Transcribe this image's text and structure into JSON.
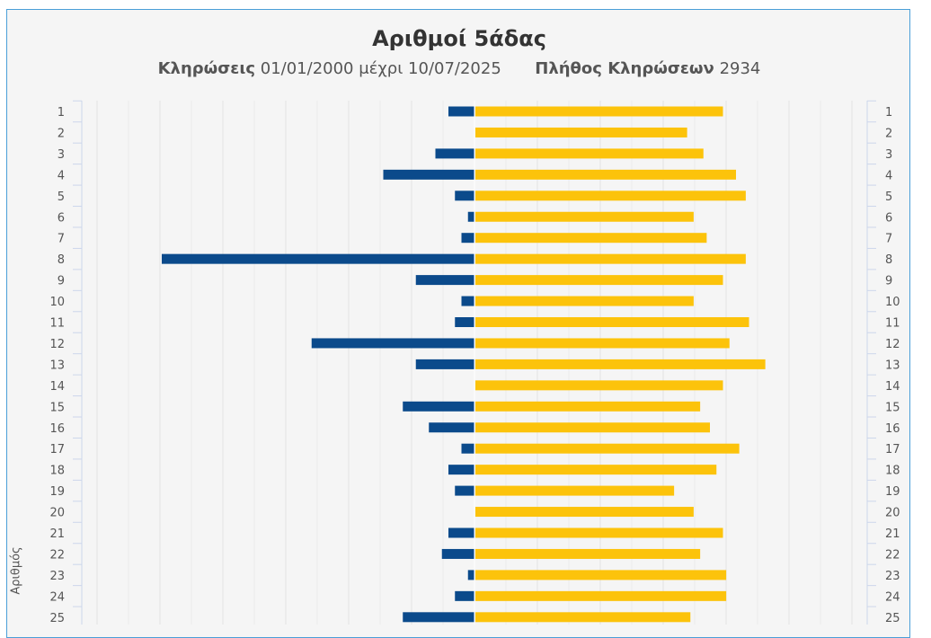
{
  "chart_data": {
    "type": "bar",
    "title": "Αριθμοί 5άδας",
    "subtitle": {
      "draws_label": "Κληρώσεις",
      "date_range": "01/01/2000 μέχρι 10/07/2025",
      "count_label": "Πλήθος Κληρώσεων",
      "count_value": "2934"
    },
    "ylabel": "Αριθμός",
    "orientation": "horizontal-diverging",
    "categories": [
      "1",
      "2",
      "3",
      "4",
      "5",
      "6",
      "7",
      "8",
      "9",
      "10",
      "11",
      "12",
      "13",
      "14",
      "15",
      "16",
      "17",
      "18",
      "19",
      "20",
      "21",
      "22",
      "23",
      "24",
      "25"
    ],
    "series": [
      {
        "color": "#0b4a8b",
        "direction": "left",
        "values": [
          4,
          0,
          6,
          14,
          3,
          1,
          2,
          48,
          9,
          2,
          3,
          25,
          9,
          0,
          11,
          7,
          2,
          4,
          3,
          0,
          4,
          5,
          1,
          3,
          11
        ]
      },
      {
        "color": "#fcc30b",
        "direction": "right",
        "values": [
          38,
          32.5,
          35,
          40,
          41.5,
          33.5,
          35.5,
          41.5,
          38,
          33.5,
          42,
          39,
          44.5,
          38,
          34.5,
          36,
          40.5,
          37,
          30.5,
          33.5,
          38,
          34.5,
          38.5,
          38.5,
          33
        ]
      }
    ],
    "grid": true
  }
}
